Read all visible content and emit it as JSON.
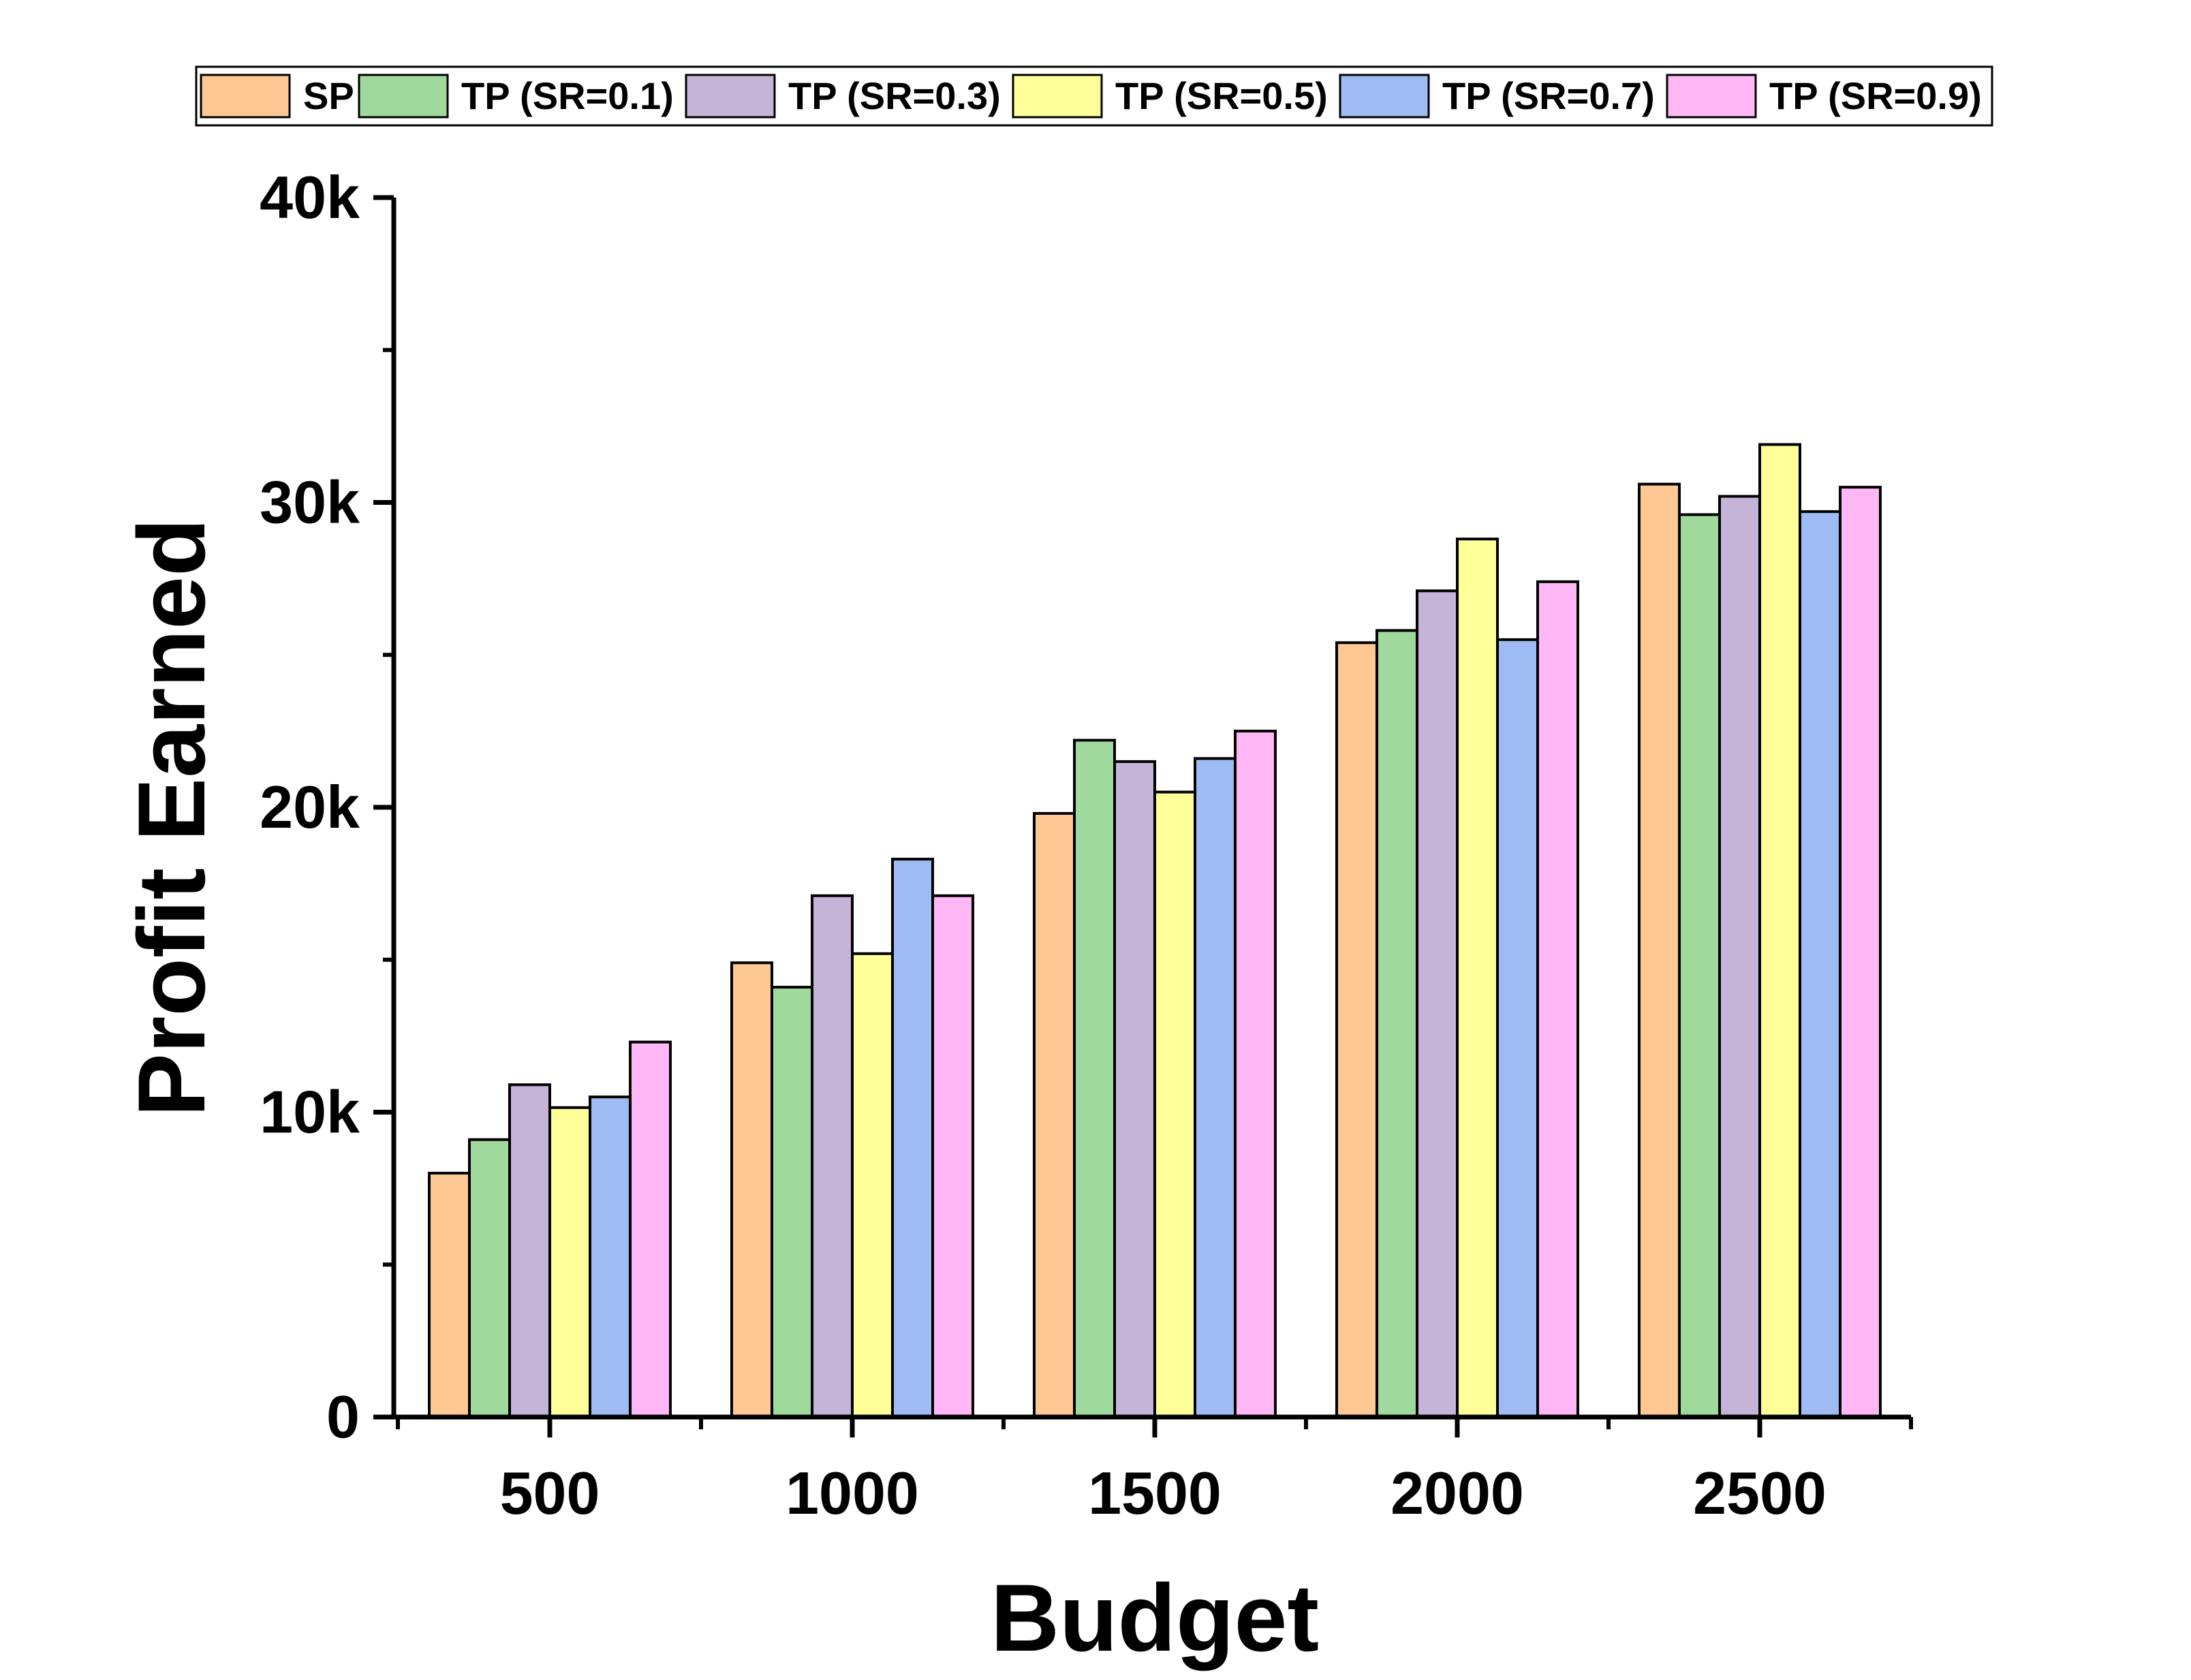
{
  "chart_data": {
    "type": "bar",
    "title": "",
    "xlabel": "Budget",
    "ylabel": "Profit Earned",
    "categories": [
      "500",
      "1000",
      "1500",
      "2000",
      "2500"
    ],
    "ylim": [
      0,
      40000
    ],
    "yticks": [
      {
        "value": 0,
        "label": "0"
      },
      {
        "value": 10000,
        "label": "10k"
      },
      {
        "value": 20000,
        "label": "20k"
      },
      {
        "value": 30000,
        "label": "30k"
      },
      {
        "value": 40000,
        "label": "40k"
      }
    ],
    "grid": false,
    "legend_position": "top",
    "series": [
      {
        "name": "SP",
        "color": "#FDC894",
        "values": [
          8000,
          14900,
          19800,
          25400,
          30600
        ]
      },
      {
        "name": "TP (SR=0.1)",
        "color": "#9FDA9C",
        "values": [
          9100,
          14100,
          22200,
          25800,
          29600
        ]
      },
      {
        "name": "TP (SR=0.3)",
        "color": "#C5B3D8",
        "values": [
          10900,
          17100,
          21500,
          27100,
          30200
        ]
      },
      {
        "name": "TP (SR=0.5)",
        "color": "#FFFF9A",
        "values": [
          10150,
          15200,
          20500,
          28800,
          31900
        ]
      },
      {
        "name": "TP (SR=0.7)",
        "color": "#9EBBF3",
        "values": [
          10500,
          18300,
          21600,
          25500,
          29700
        ]
      },
      {
        "name": "TP (SR=0.9)",
        "color": "#FFB8F5",
        "values": [
          12300,
          17100,
          22500,
          27400,
          30500
        ]
      }
    ]
  }
}
